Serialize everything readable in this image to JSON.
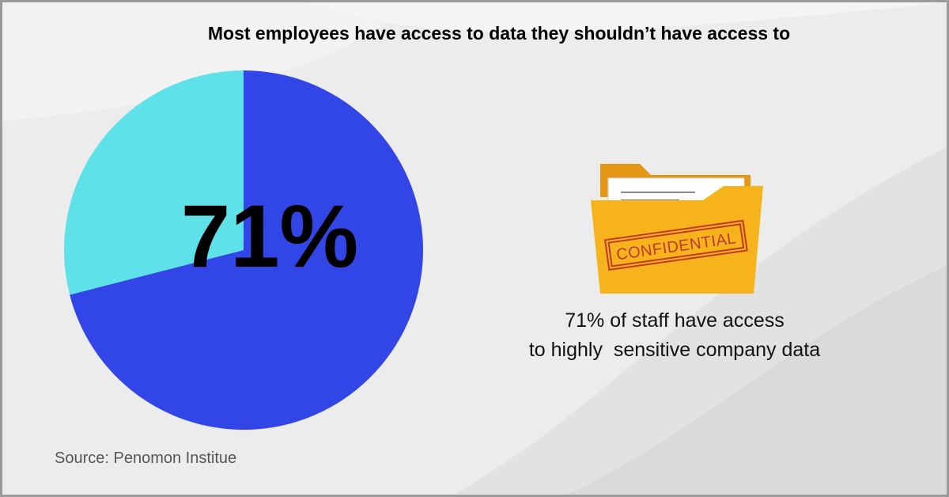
{
  "colors": {
    "background": "#ececec",
    "series_majority": "#3245e6",
    "series_minority": "#5ee1e8",
    "folder": "#f6b31b",
    "folder_back": "#e59713",
    "stamp": "#c0392b"
  },
  "icons": {
    "folder": "folder-icon",
    "stamp": "confidential-stamp"
  },
  "stamp_text": "CONFIDENTIAL",
  "caption": {
    "line1": "71% of staff have access",
    "line2": "to highly  sensitive company data"
  },
  "source": "Source: Penomon Institue",
  "chart_data": {
    "type": "pie",
    "title": "Most employees have access to data they shouldn’t have access to",
    "center_label": "71%",
    "slices": [
      {
        "value": 71,
        "color": "#3245e6"
      },
      {
        "value": 29,
        "color": "#5ee1e8"
      }
    ]
  }
}
